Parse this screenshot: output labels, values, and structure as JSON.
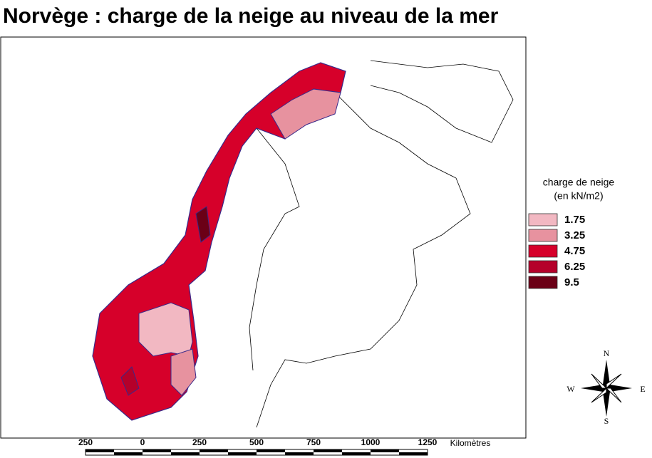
{
  "title": "Norvège : charge de la neige au niveau de la mer",
  "legend": {
    "title": [
      "charge de neige",
      "(en kN/m2)"
    ],
    "items": [
      {
        "label": "1.75",
        "color": "#f2b8c2"
      },
      {
        "label": "3.25",
        "color": "#e7929f"
      },
      {
        "label": "4.75",
        "color": "#d6002a"
      },
      {
        "label": "6.25",
        "color": "#b5002a"
      },
      {
        "label": "9.5",
        "color": "#6b0016"
      }
    ]
  },
  "scale_bar": {
    "labels": [
      "250",
      "0",
      "250",
      "500",
      "750",
      "1000",
      "1250"
    ],
    "unit": "Kilomètres"
  },
  "compass": {
    "north": "N",
    "south": "S",
    "west": "W",
    "east": "E"
  }
}
